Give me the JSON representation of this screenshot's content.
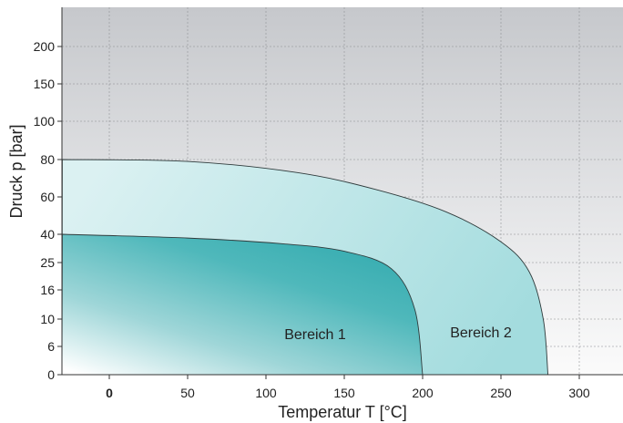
{
  "chart_data": {
    "type": "area",
    "xlabel": "Temperatur T   [°C]",
    "ylabel": "Druck p   [bar]",
    "x_ticks": [
      "0",
      "50",
      "100",
      "150",
      "200",
      "250",
      "300"
    ],
    "x_tick_values": [
      0,
      50,
      100,
      150,
      200,
      250,
      300
    ],
    "x_bold_tick": "0",
    "xlim": [
      -30,
      330
    ],
    "y_ticks": [
      "0",
      "6",
      "10",
      "16",
      "25",
      "40",
      "60",
      "80",
      "100",
      "150",
      "200"
    ],
    "y_scale": "categorical-nonlinear",
    "grid": true,
    "regions": [
      {
        "label": "Bereich 2",
        "max_pressure": 80,
        "max_temperature": 280,
        "boundary": [
          {
            "x": -30,
            "y": "80"
          },
          {
            "x": 50,
            "y": "79"
          },
          {
            "x": 120,
            "y": "73"
          },
          {
            "x": 170,
            "y": "64"
          },
          {
            "x": 215,
            "y": "52"
          },
          {
            "x": 250,
            "y": "36"
          },
          {
            "x": 268,
            "y": "22"
          },
          {
            "x": 277,
            "y": "10"
          },
          {
            "x": 280,
            "y": "0"
          }
        ],
        "color": "#a8dee0"
      },
      {
        "label": "Bereich 1",
        "max_pressure": 40,
        "max_temperature": 200,
        "boundary": [
          {
            "x": -30,
            "y": "40"
          },
          {
            "x": 50,
            "y": "38"
          },
          {
            "x": 110,
            "y": "35"
          },
          {
            "x": 150,
            "y": "31"
          },
          {
            "x": 180,
            "y": "23"
          },
          {
            "x": 195,
            "y": "12"
          },
          {
            "x": 200,
            "y": "0"
          }
        ],
        "color": "#45b5b8"
      }
    ]
  }
}
